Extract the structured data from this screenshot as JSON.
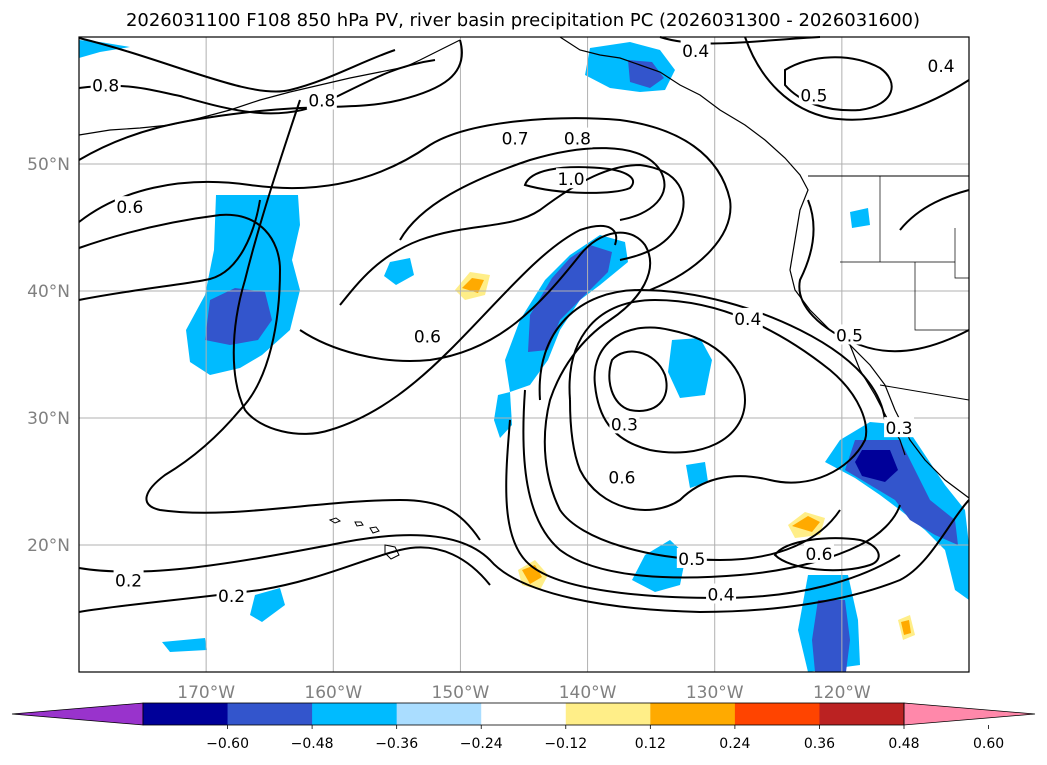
{
  "title": "2026031100 F108 850 hPa PV, river basin precipitation PC (2026031300 - 2026031600)",
  "map": {
    "lon_range": [
      -180,
      -110
    ],
    "lat_range": [
      10,
      60
    ],
    "lon_ticks": [
      {
        "lon": -170,
        "label": "170°W"
      },
      {
        "lon": -160,
        "label": "160°W"
      },
      {
        "lon": -150,
        "label": "150°W"
      },
      {
        "lon": -140,
        "label": "140°W"
      },
      {
        "lon": -130,
        "label": "130°W"
      },
      {
        "lon": -120,
        "label": "120°W"
      }
    ],
    "lat_ticks": [
      {
        "lat": 50,
        "label": "50°N"
      },
      {
        "lat": 40,
        "label": "40°N"
      },
      {
        "lat": 30,
        "label": "30°N"
      },
      {
        "lat": 20,
        "label": "20°N"
      }
    ],
    "grid": true,
    "contour_labels": [
      {
        "text": "0.4",
        "lon": -131.5,
        "lat": 58.9
      },
      {
        "text": "0.4",
        "lon": -112.2,
        "lat": 57.7
      },
      {
        "text": "0.5",
        "lon": -122.2,
        "lat": 55.4
      },
      {
        "text": "0.8",
        "lon": -177.9,
        "lat": 56.2
      },
      {
        "text": "0.8",
        "lon": -160.9,
        "lat": 55.0
      },
      {
        "text": "0.7",
        "lon": -145.7,
        "lat": 52.0
      },
      {
        "text": "0.8",
        "lon": -140.8,
        "lat": 52.0
      },
      {
        "text": "1.0",
        "lon": -141.3,
        "lat": 48.8
      },
      {
        "text": "0.6",
        "lon": -176.0,
        "lat": 46.6
      },
      {
        "text": "0.6",
        "lon": -152.6,
        "lat": 36.4
      },
      {
        "text": "0.4",
        "lon": -127.4,
        "lat": 37.8
      },
      {
        "text": "0.5",
        "lon": -119.4,
        "lat": 36.5
      },
      {
        "text": "0.3",
        "lon": -115.5,
        "lat": 29.2
      },
      {
        "text": "0.3",
        "lon": -137.1,
        "lat": 29.5
      },
      {
        "text": "0.6",
        "lon": -137.3,
        "lat": 25.3
      },
      {
        "text": "0.5",
        "lon": -131.8,
        "lat": 18.9
      },
      {
        "text": "0.6",
        "lon": -121.8,
        "lat": 19.3
      },
      {
        "text": "0.4",
        "lon": -129.5,
        "lat": 16.1
      },
      {
        "text": "0.2",
        "lon": -176.1,
        "lat": 17.2
      },
      {
        "text": "0.2",
        "lon": -168.0,
        "lat": 16.0
      }
    ]
  },
  "colorbar": {
    "colors": [
      "#9933cc",
      "#000099",
      "#3355cc",
      "#00bbff",
      "#aaddff",
      "#ffffff",
      "#ffee88",
      "#ffaa00",
      "#ff4400",
      "#bb2222",
      "#ff88aa"
    ],
    "tick_labels": [
      "−0.60",
      "−0.48",
      "−0.36",
      "−0.24",
      "−0.12",
      "0.12",
      "0.24",
      "0.36",
      "0.48",
      "0.60"
    ],
    "extend": "both"
  },
  "colors": {
    "land_outline": "#000000",
    "grid": "#b0b0b0",
    "tick_label": "#808080"
  }
}
